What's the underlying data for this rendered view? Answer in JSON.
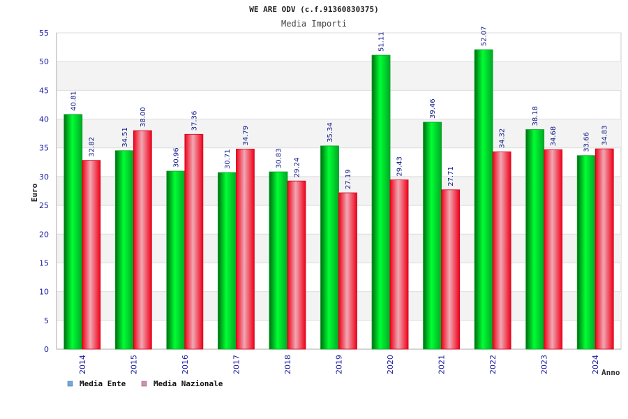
{
  "chart_data": {
    "type": "bar",
    "title": "WE ARE ODV (c.f.91360830375)",
    "subtitle": "Media Importi",
    "xlabel": "Anno",
    "ylabel": "Euro",
    "ylim": [
      0,
      55
    ],
    "yticks": [
      "0",
      "5",
      "10",
      "15",
      "20",
      "25",
      "30",
      "35",
      "40",
      "45",
      "50",
      "55"
    ],
    "categories": [
      "2014",
      "2015",
      "2016",
      "2017",
      "2018",
      "2019",
      "2020",
      "2021",
      "2022",
      "2023",
      "2024"
    ],
    "series": [
      {
        "name": "Media Ente",
        "color": "#00cc33",
        "legend_color": "#66aaee",
        "values": [
          40.81,
          34.51,
          30.96,
          30.71,
          30.83,
          35.34,
          51.11,
          39.46,
          52.07,
          38.18,
          33.66
        ],
        "labels": [
          "40.81",
          "34.51",
          "30.96",
          "30.71",
          "30.83",
          "35.34",
          "51.11",
          "39.46",
          "52.07",
          "38.18",
          "33.66"
        ]
      },
      {
        "name": "Media Nazionale",
        "color": "#ee1133",
        "legend_color": "#dd88bb",
        "values": [
          32.82,
          38.0,
          37.36,
          34.79,
          29.24,
          27.19,
          29.43,
          27.71,
          34.32,
          34.68,
          34.83
        ],
        "labels": [
          "32.82",
          "38.00",
          "37.36",
          "34.79",
          "29.24",
          "27.19",
          "29.43",
          "27.71",
          "34.32",
          "34.68",
          "34.83"
        ]
      }
    ],
    "grid": true,
    "legend": "bottom-left"
  }
}
